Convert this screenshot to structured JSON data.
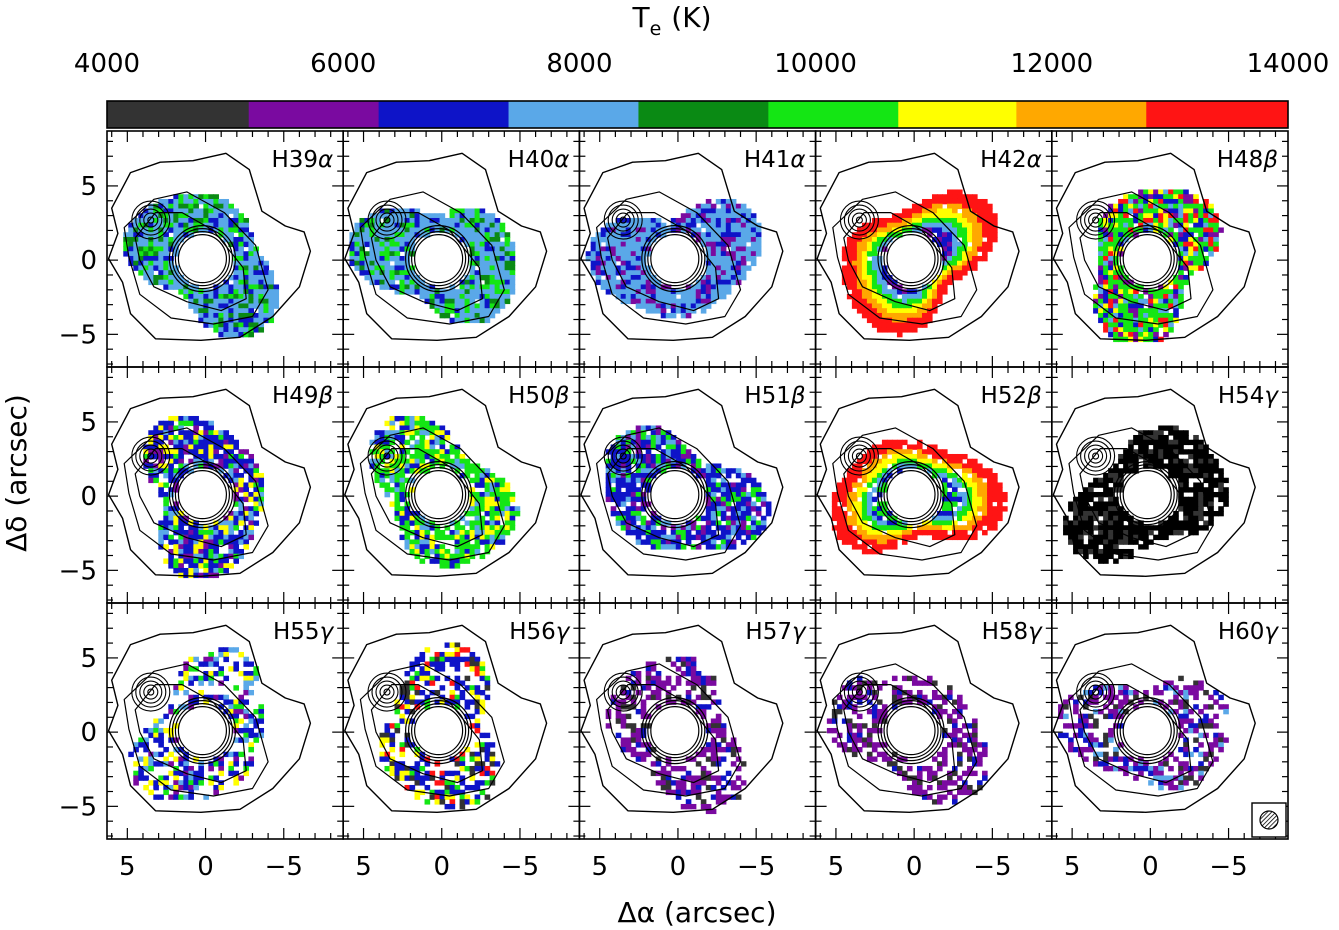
{
  "colorbar": {
    "title_main": "T",
    "title_sub": "e",
    "title_unit": "(K)",
    "range": [
      4000,
      14000
    ],
    "tick_labels": [
      "4000",
      "6000",
      "8000",
      "10000",
      "12000",
      "14000"
    ],
    "bins": [
      {
        "from": 4000,
        "to": 5200,
        "color": "#333333"
      },
      {
        "from": 5200,
        "to": 6300,
        "color": "#7a0aa0"
      },
      {
        "from": 6300,
        "to": 7400,
        "color": "#0e14c8"
      },
      {
        "from": 7400,
        "to": 8500,
        "color": "#5aa8e8"
      },
      {
        "from": 8500,
        "to": 9600,
        "color": "#0a8a14"
      },
      {
        "from": 9600,
        "to": 10700,
        "color": "#14e614"
      },
      {
        "from": 10700,
        "to": 11700,
        "color": "#ffff00"
      },
      {
        "from": 11700,
        "to": 12800,
        "color": "#ffa800"
      },
      {
        "from": 12800,
        "to": 14000,
        "color": "#ff1414"
      }
    ]
  },
  "chart_data": {
    "type": "heatmap",
    "xlabel": "Δα (arcsec)",
    "ylabel": "Δδ (arcsec)",
    "xlim": [
      6.3,
      -8.8
    ],
    "ylim": [
      -7.2,
      8.7
    ],
    "x_ticks": [
      "5",
      "0",
      "−5"
    ],
    "y_ticks": [
      "5",
      "0",
      "−5"
    ],
    "panels": [
      {
        "label": "H39",
        "greek": "α",
        "dominant_color": "#5aa8e8",
        "mix": [
          "#0a8a14",
          "#14e614",
          "#0e14c8"
        ]
      },
      {
        "label": "H40",
        "greek": "α",
        "dominant_color": "#5aa8e8",
        "mix": [
          "#0a8a14",
          "#14e614",
          "#0e14c8"
        ]
      },
      {
        "label": "H41",
        "greek": "α",
        "dominant_color": "#5aa8e8",
        "mix": [
          "#0e14c8",
          "#7a0aa0"
        ]
      },
      {
        "label": "H42",
        "greek": "α",
        "dominant_color": "#0e14c8",
        "mix": [
          "#5aa8e8",
          "#14e614",
          "#ffff00",
          "#ff1414",
          "#7a0aa0"
        ]
      },
      {
        "label": "H48",
        "greek": "β",
        "dominant_color": "#14e614",
        "mix": [
          "#5aa8e8",
          "#0e14c8",
          "#ffff00",
          "#ff1414",
          "#7a0aa0"
        ]
      },
      {
        "label": "H49",
        "greek": "β",
        "dominant_color": "#0e14c8",
        "mix": [
          "#5aa8e8",
          "#14e614",
          "#7a0aa0",
          "#ffff00"
        ]
      },
      {
        "label": "H50",
        "greek": "β",
        "dominant_color": "#14e614",
        "mix": [
          "#5aa8e8",
          "#0e14c8",
          "#ffff00"
        ]
      },
      {
        "label": "H51",
        "greek": "β",
        "dominant_color": "#0e14c8",
        "mix": [
          "#5aa8e8",
          "#14e614",
          "#7a0aa0"
        ]
      },
      {
        "label": "H52",
        "greek": "β",
        "dominant_color": "#ff1414",
        "mix": [
          "#ffa800",
          "#ffff00",
          "#14e614",
          "#0e14c8",
          "#333333"
        ]
      },
      {
        "label": "H54",
        "greek": "γ",
        "dominant_color": "#000000",
        "mix": [
          "#333333"
        ]
      },
      {
        "label": "H55",
        "greek": "γ",
        "dominant_color": "#0e14c8",
        "mix": [
          "#14e614",
          "#7a0aa0",
          "#ffff00",
          "#5aa8e8"
        ]
      },
      {
        "label": "H56",
        "greek": "γ",
        "dominant_color": "#0e14c8",
        "mix": [
          "#14e614",
          "#ffff00",
          "#333333",
          "#ff1414"
        ]
      },
      {
        "label": "H57",
        "greek": "γ",
        "dominant_color": "#7a0aa0",
        "mix": [
          "#0e14c8",
          "#333333"
        ]
      },
      {
        "label": "H58",
        "greek": "γ",
        "dominant_color": "#7a0aa0",
        "mix": [
          "#0e14c8",
          "#333333"
        ]
      },
      {
        "label": "H60",
        "greek": "γ",
        "dominant_color": "#7a0aa0",
        "mix": [
          "#0e14c8",
          "#333333",
          "#5aa8e8"
        ]
      }
    ],
    "beam_panel": "H60"
  }
}
